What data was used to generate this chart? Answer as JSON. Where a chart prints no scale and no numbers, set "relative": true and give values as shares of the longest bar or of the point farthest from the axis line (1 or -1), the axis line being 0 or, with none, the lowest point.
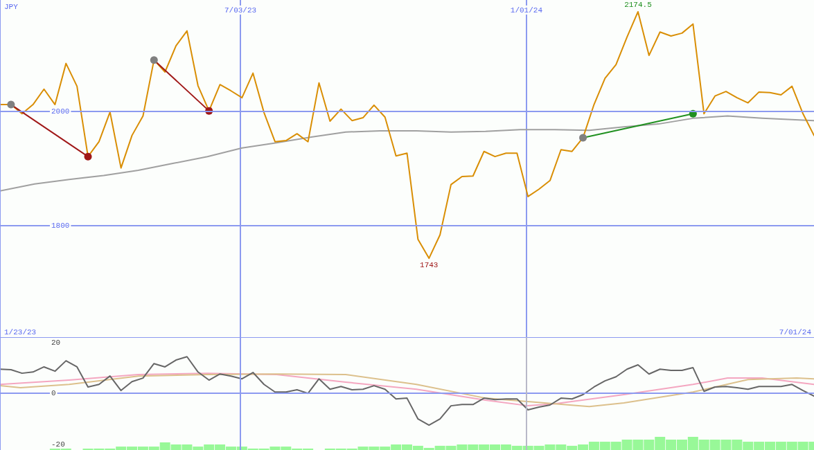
{
  "chart_data": [
    {
      "type": "line",
      "ylabel": "JPY",
      "xlim": [
        "2023-01-31",
        "2024-07-02"
      ],
      "ylim": [
        1605,
        2195
      ],
      "yticks": [
        2000,
        1800
      ],
      "xticks": [
        {
          "value": "2023-07-03",
          "label": "7/03/23"
        },
        {
          "value": "2024-01-01",
          "label": "1/01/24"
        }
      ],
      "grid": true,
      "marker": "none",
      "x": [
        "2023-01-31",
        "2023-02-07",
        "2023-02-14",
        "2023-02-21",
        "2023-02-28",
        "2023-03-07",
        "2023-03-14",
        "2023-03-21",
        "2023-03-28",
        "2023-04-04",
        "2023-04-11",
        "2023-04-18",
        "2023-04-25",
        "2023-05-02",
        "2023-05-09",
        "2023-05-16",
        "2023-05-23",
        "2023-05-30",
        "2023-06-06",
        "2023-06-13",
        "2023-06-20",
        "2023-06-27",
        "2023-07-04",
        "2023-07-11",
        "2023-07-18",
        "2023-07-25",
        "2023-08-01",
        "2023-08-08",
        "2023-08-15",
        "2023-08-22",
        "2023-08-29",
        "2023-09-05",
        "2023-09-12",
        "2023-09-19",
        "2023-09-26",
        "2023-10-03",
        "2023-10-10",
        "2023-10-17",
        "2023-10-24",
        "2023-10-31",
        "2023-11-07",
        "2023-11-14",
        "2023-11-21",
        "2023-11-28",
        "2023-12-05",
        "2023-12-12",
        "2023-12-19",
        "2023-12-26",
        "2024-01-02",
        "2024-01-09",
        "2024-01-16",
        "2024-01-23",
        "2024-01-30",
        "2024-02-06",
        "2024-02-13",
        "2024-02-20",
        "2024-02-27",
        "2024-03-05",
        "2024-03-12",
        "2024-03-19",
        "2024-03-26",
        "2024-04-02",
        "2024-04-09",
        "2024-04-16",
        "2024-04-23",
        "2024-04-30",
        "2024-05-07",
        "2024-05-14",
        "2024-05-21",
        "2024-05-28",
        "2024-06-04",
        "2024-06-11",
        "2024-06-18",
        "2024-06-25",
        "2024-07-02"
      ],
      "series": [
        {
          "color": "#a0a0a0",
          "x": [
            "2023-01-31",
            "2023-02-22",
            "2023-03-16",
            "2023-04-07",
            "2023-04-29",
            "2023-05-21",
            "2023-06-12",
            "2023-07-04",
            "2023-07-26",
            "2023-08-17",
            "2023-09-08",
            "2023-09-30",
            "2023-10-23",
            "2023-11-14",
            "2023-12-06",
            "2023-12-28",
            "2024-01-19",
            "2024-02-10",
            "2024-03-03",
            "2024-03-25",
            "2024-04-16",
            "2024-05-08",
            "2024-05-30",
            "2024-07-02"
          ],
          "values": [
            1861,
            1873,
            1881,
            1888,
            1897,
            1909,
            1921,
            1936,
            1945,
            1955,
            1964,
            1966,
            1966,
            1964,
            1965,
            1968,
            1968,
            1967,
            1973,
            1978,
            1988,
            1992,
            1988,
            1984
          ]
        },
        {
          "color": "#d98e04",
          "values": [
            2012,
            2012,
            1996,
            2012,
            2039,
            2012,
            2084,
            2044,
            1921,
            1947,
            1999,
            1901,
            1958,
            1992,
            2090,
            2069,
            2115,
            2141,
            2045,
            2001,
            2047,
            2036,
            2024,
            2067,
            1998,
            1947,
            1949,
            1961,
            1947,
            2050,
            1983,
            2004,
            1984,
            1989,
            2011,
            1990,
            1922,
            1927,
            1776,
            1743,
            1784,
            1872,
            1886,
            1887,
            1930,
            1921,
            1927,
            1927,
            1851,
            1864,
            1879,
            1933,
            1930,
            1954,
            2012,
            2058,
            2082,
            2130,
            2174.5,
            2098,
            2139,
            2132,
            2137,
            2153,
            1996,
            2027,
            2035,
            2024,
            2015,
            2034,
            2033,
            2029,
            2044,
            1996,
            1958
          ]
        },
        {
          "color": "#a01818",
          "x": [
            "2023-02-07",
            "2023-03-28"
          ],
          "values": [
            2012,
            1921
          ]
        },
        {
          "color": "#a01818",
          "x": [
            "2023-05-09",
            "2023-06-13"
          ],
          "values": [
            2090,
            2001
          ]
        },
        {
          "color": "#209020",
          "x": [
            "2024-02-06",
            "2024-04-16"
          ],
          "values": [
            1954,
            1996
          ]
        },
        {
          "type": "scatter",
          "marker": "circle",
          "color": "#808080",
          "x": [
            "2023-02-07",
            "2023-05-09",
            "2024-02-06"
          ],
          "values": [
            2012,
            2090,
            1954
          ]
        },
        {
          "type": "scatter",
          "marker": "circle",
          "color": "#a01818",
          "x": [
            "2023-03-28",
            "2023-06-13"
          ],
          "values": [
            1921,
            2001
          ]
        },
        {
          "type": "scatter",
          "marker": "circle",
          "color": "#209020",
          "x": [
            "2024-04-16"
          ],
          "values": [
            1996
          ]
        }
      ],
      "annotations": [
        {
          "text": "2174.5",
          "x": "2024-03-12",
          "y": 2174.5
        },
        {
          "text": "1743",
          "x": "2023-10-31",
          "y": 1743
        },
        "1/23/23",
        "7/01/24"
      ]
    },
    {
      "type": "line",
      "xlim": [
        "2023-01-31",
        "2024-07-02"
      ],
      "ylim": [
        -22.3,
        22.1
      ],
      "yticks": [
        20,
        0,
        -20
      ],
      "tick_labels": "y",
      "marker": "none",
      "ref_lines": [
        {
          "axis": "y",
          "value": 0,
          "color": "#8c9af0"
        },
        {
          "axis": "x",
          "value": "2023-07-03",
          "color": "#8c9af0"
        },
        {
          "axis": "x",
          "value": "2024-01-01",
          "color": "#b8b8c8"
        }
      ],
      "x": [
        "2023-01-31",
        "2023-02-07",
        "2023-02-14",
        "2023-02-21",
        "2023-02-28",
        "2023-03-07",
        "2023-03-14",
        "2023-03-21",
        "2023-03-28",
        "2023-04-04",
        "2023-04-11",
        "2023-04-18",
        "2023-04-25",
        "2023-05-02",
        "2023-05-09",
        "2023-05-16",
        "2023-05-23",
        "2023-05-30",
        "2023-06-06",
        "2023-06-13",
        "2023-06-20",
        "2023-06-27",
        "2023-07-04",
        "2023-07-11",
        "2023-07-18",
        "2023-07-25",
        "2023-08-01",
        "2023-08-08",
        "2023-08-15",
        "2023-08-22",
        "2023-08-29",
        "2023-09-05",
        "2023-09-12",
        "2023-09-19",
        "2023-09-26",
        "2023-10-03",
        "2023-10-10",
        "2023-10-17",
        "2023-10-24",
        "2023-10-31",
        "2023-11-07",
        "2023-11-14",
        "2023-11-21",
        "2023-11-28",
        "2023-12-05",
        "2023-12-12",
        "2023-12-19",
        "2023-12-26",
        "2024-01-02",
        "2024-01-09",
        "2024-01-16",
        "2024-01-23",
        "2024-01-30",
        "2024-02-06",
        "2024-02-13",
        "2024-02-20",
        "2024-02-27",
        "2024-03-05",
        "2024-03-12",
        "2024-03-19",
        "2024-03-26",
        "2024-04-02",
        "2024-04-09",
        "2024-04-16",
        "2024-04-23",
        "2024-04-30",
        "2024-05-07",
        "2024-05-14",
        "2024-05-21",
        "2024-05-28",
        "2024-06-04",
        "2024-06-11",
        "2024-06-18",
        "2024-06-25",
        "2024-07-02"
      ],
      "series": [
        {
          "color": "#f4a6c0",
          "x": [
            "2023-01-31",
            "2023-03-16",
            "2023-04-29",
            "2023-06-12",
            "2023-07-26",
            "2023-09-08",
            "2023-10-23",
            "2023-12-06",
            "2024-01-02",
            "2024-01-19",
            "2024-03-03",
            "2024-04-16",
            "2024-05-08",
            "2024-05-30",
            "2024-07-02"
          ],
          "values": [
            3.5,
            5.2,
            7.4,
            7.9,
            7.4,
            4.4,
            1.6,
            -2.7,
            -4.9,
            -4.1,
            -0.5,
            3.5,
            6.0,
            6.0,
            3.5
          ]
        },
        {
          "color": "#dcc08c",
          "x": [
            "2023-01-31",
            "2023-02-13",
            "2023-03-16",
            "2023-04-29",
            "2023-06-12",
            "2023-07-26",
            "2023-09-08",
            "2023-10-23",
            "2023-12-06",
            "2024-01-19",
            "2024-02-10",
            "2024-03-03",
            "2024-04-16",
            "2024-05-21",
            "2024-06-21",
            "2024-07-02"
          ],
          "values": [
            3.0,
            2.2,
            3.5,
            6.8,
            7.4,
            7.6,
            7.4,
            3.5,
            -1.9,
            -4.1,
            -5.2,
            -3.8,
            0.5,
            5.4,
            6.0,
            5.7
          ]
        },
        {
          "color": "#666666",
          "values": [
            9.5,
            9.3,
            7.9,
            8.4,
            10.4,
            8.7,
            12.8,
            10.4,
            2.5,
            3.5,
            6.8,
            1.1,
            4.6,
            6.0,
            11.7,
            10.4,
            13.1,
            14.4,
            8.4,
            5.2,
            7.6,
            6.8,
            5.7,
            8.2,
            3.5,
            0.5,
            0.5,
            1.4,
            0,
            5.7,
            1.6,
            2.7,
            1.4,
            1.6,
            3.0,
            1.6,
            -2.2,
            -1.9,
            -10.1,
            -12.5,
            -10.1,
            -4.9,
            -4.4,
            -4.4,
            -1.9,
            -2.5,
            -2.2,
            -2.2,
            -6.5,
            -5.4,
            -4.6,
            -1.9,
            -2.2,
            -0.5,
            2.5,
            4.9,
            6.5,
            9.5,
            11.2,
            7.6,
            9.5,
            9.0,
            9.0,
            10.1,
            0.8,
            2.5,
            2.7,
            2.2,
            1.6,
            2.7,
            2.7,
            2.7,
            3.5,
            1.1,
            -1.1
          ]
        }
      ]
    },
    {
      "type": "bar",
      "relative": true,
      "tick_labels": false,
      "xlim": [
        "2023-01-31",
        "2024-07-02"
      ],
      "color": "#98f898",
      "x": [
        "2023-01-31",
        "2023-02-07",
        "2023-02-14",
        "2023-02-21",
        "2023-02-28",
        "2023-03-07",
        "2023-03-14",
        "2023-03-21",
        "2023-03-28",
        "2023-04-04",
        "2023-04-11",
        "2023-04-18",
        "2023-04-25",
        "2023-05-02",
        "2023-05-09",
        "2023-05-16",
        "2023-05-23",
        "2023-05-30",
        "2023-06-06",
        "2023-06-13",
        "2023-06-20",
        "2023-06-27",
        "2023-07-04",
        "2023-07-11",
        "2023-07-18",
        "2023-07-25",
        "2023-08-01",
        "2023-08-08",
        "2023-08-15",
        "2023-08-22",
        "2023-08-29",
        "2023-09-05",
        "2023-09-12",
        "2023-09-19",
        "2023-09-26",
        "2023-10-03",
        "2023-10-10",
        "2023-10-17",
        "2023-10-24",
        "2023-10-31",
        "2023-11-07",
        "2023-11-14",
        "2023-11-21",
        "2023-11-28",
        "2023-12-05",
        "2023-12-12",
        "2023-12-19",
        "2023-12-26",
        "2024-01-02",
        "2024-01-09",
        "2024-01-16",
        "2024-01-23",
        "2024-01-30",
        "2024-02-06",
        "2024-02-13",
        "2024-02-20",
        "2024-02-27",
        "2024-03-05",
        "2024-03-12",
        "2024-03-19",
        "2024-03-26",
        "2024-04-02",
        "2024-04-09",
        "2024-04-16",
        "2024-04-23",
        "2024-04-30",
        "2024-05-07",
        "2024-05-14",
        "2024-05-21",
        "2024-05-28",
        "2024-06-04",
        "2024-06-11",
        "2024-06-18",
        "2024-06-25",
        "2024-07-02"
      ],
      "values": [
        0,
        0,
        0,
        0,
        0,
        0.11,
        0.11,
        0,
        0.11,
        0.11,
        0.11,
        0.26,
        0.26,
        0.26,
        0.26,
        0.58,
        0.42,
        0.42,
        0.26,
        0.42,
        0.42,
        0.26,
        0.26,
        0.11,
        0.11,
        0.26,
        0.26,
        0.11,
        0.11,
        0,
        0.11,
        0.11,
        0.11,
        0.26,
        0.26,
        0.26,
        0.42,
        0.42,
        0.32,
        0.16,
        0.32,
        0.32,
        0.42,
        0.42,
        0.42,
        0.42,
        0.42,
        0.32,
        0.32,
        0.32,
        0.42,
        0.42,
        0.32,
        0.42,
        0.63,
        0.63,
        0.63,
        0.79,
        0.79,
        0.79,
        1,
        0.79,
        0.79,
        1,
        0.79,
        0.79,
        0.79,
        0.79,
        0.63,
        0.63,
        0.63,
        0.63,
        0.63,
        0.63,
        0.63
      ]
    }
  ]
}
